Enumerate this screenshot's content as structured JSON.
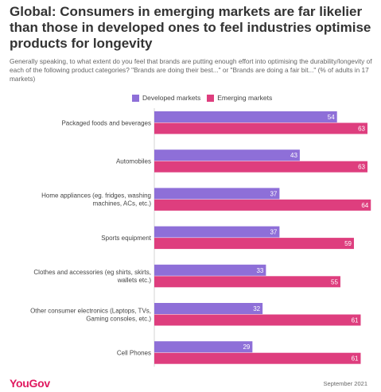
{
  "title": "Global: Consumers in emerging markets are far likelier than those in developed ones to feel industries optimise products for longevity",
  "subtitle": "Generally speaking, to what extent do you feel that brands are putting enough effort into optimising the durability/longevity of each of the following product categories? \"Brands are doing their best...\" or \"Brands are doing a fair bit...\" (% of adults in 17 markets)",
  "legend": {
    "developed": "Developed markets",
    "emerging": "Emerging markets"
  },
  "colors": {
    "developed": "#8e6fd8",
    "emerging": "#de3e7e"
  },
  "footer": {
    "logo": "YouGov",
    "date": "September 2021"
  },
  "chart_data": {
    "type": "bar",
    "orientation": "horizontal",
    "categories": [
      [
        "Packaged foods and beverages"
      ],
      [
        "Automobiles"
      ],
      [
        "Home appliances (eg. fridges, washing",
        "machines, ACs, etc.)"
      ],
      [
        "Sports equipment"
      ],
      [
        "Clothes and accessories (eg shirts, skirts,",
        "wallets etc.)"
      ],
      [
        "Other consumer electronics (Laptops, TVs,",
        "Gaming consoles, etc.)"
      ],
      [
        "Cell Phones"
      ]
    ],
    "series": [
      {
        "name": "Developed markets",
        "values": [
          54,
          43,
          37,
          37,
          33,
          32,
          29
        ]
      },
      {
        "name": "Emerging markets",
        "values": [
          63,
          63,
          64,
          59,
          55,
          61,
          61
        ]
      }
    ],
    "xlim": [
      0,
      67
    ],
    "grid": false,
    "legend_position": "top"
  }
}
